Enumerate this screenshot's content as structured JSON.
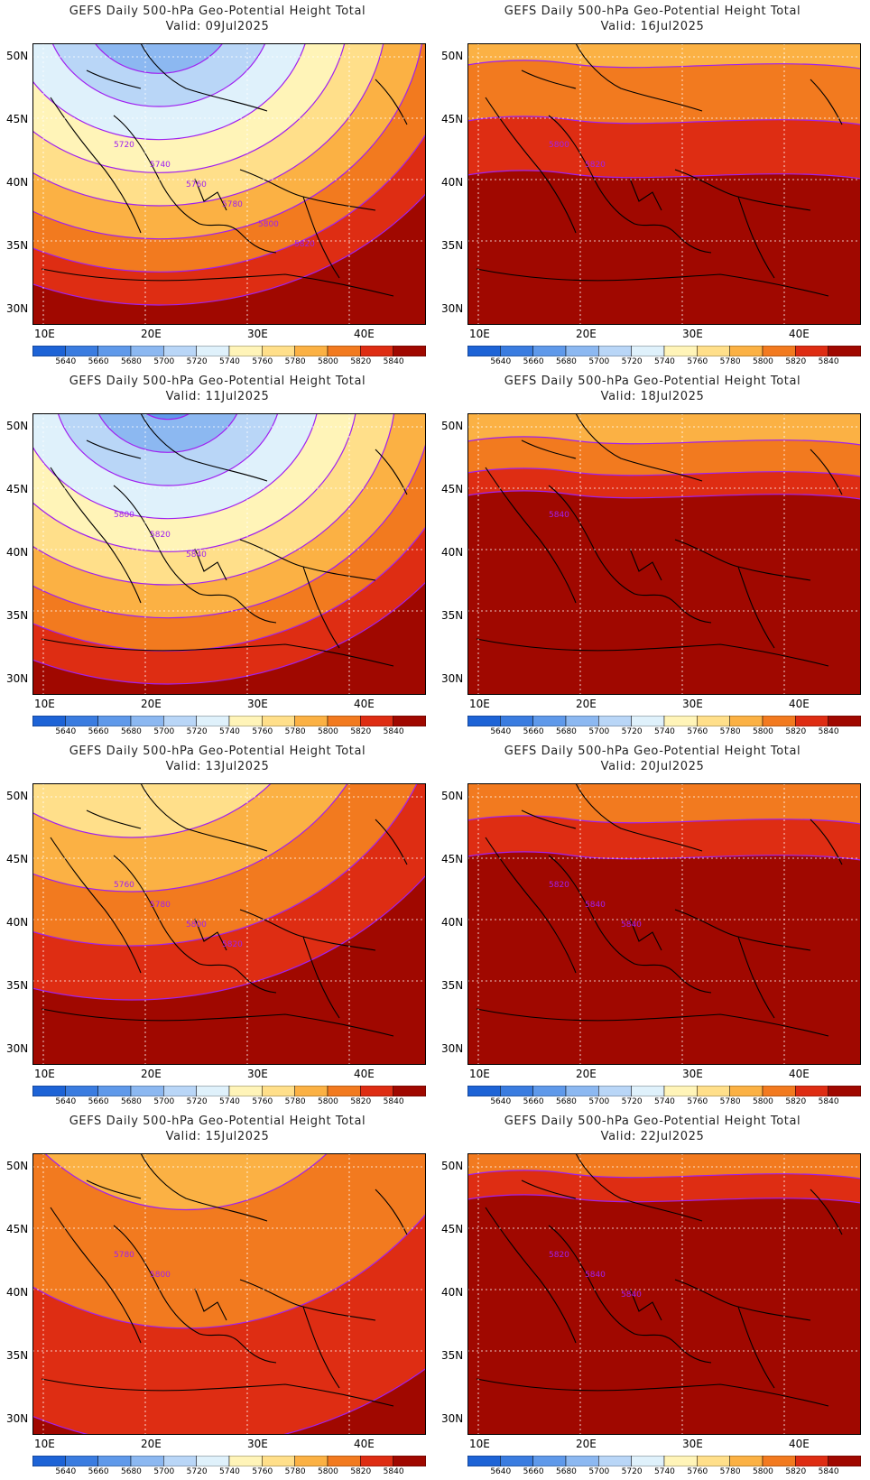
{
  "title_line": "GEFS Daily 500-hPa Geo-Potential Height Total",
  "valid_prefix": "Valid:",
  "panels": [
    {
      "date": "09Jul2025",
      "contour_labels": [
        "5720",
        "5740",
        "5760",
        "5780",
        "5800",
        "5820"
      ]
    },
    {
      "date": "16Jul2025",
      "contour_labels": [
        "5800",
        "5820"
      ]
    },
    {
      "date": "11Jul2025",
      "contour_labels": [
        "5800",
        "5820",
        "5840"
      ]
    },
    {
      "date": "18Jul2025",
      "contour_labels": [
        "5840"
      ]
    },
    {
      "date": "13Jul2025",
      "contour_labels": [
        "5760",
        "5780",
        "5800",
        "5820"
      ]
    },
    {
      "date": "20Jul2025",
      "contour_labels": [
        "5820",
        "5840",
        "5840"
      ]
    },
    {
      "date": "15Jul2025",
      "contour_labels": [
        "5780",
        "5800"
      ]
    },
    {
      "date": "22Jul2025",
      "contour_labels": [
        "5820",
        "5840",
        "5840"
      ]
    }
  ],
  "lat_labels": [
    "50N",
    "45N",
    "40N",
    "35N",
    "30N"
  ],
  "lon_labels": [
    "10E",
    "20E",
    "30E",
    "40E"
  ],
  "colorbar": {
    "ticks": [
      "5640",
      "5660",
      "5680",
      "5700",
      "5720",
      "5740",
      "5760",
      "5780",
      "5800",
      "5820",
      "5840"
    ],
    "colors": [
      "#1d63d6",
      "#3a7ce0",
      "#5f99ea",
      "#8cb8f1",
      "#b9d6f7",
      "#dff1fb",
      "#fff4b8",
      "#ffdf8a",
      "#fbb144",
      "#f27a1f",
      "#de2d13",
      "#a00800"
    ]
  },
  "colors": {
    "contour": "#a020f0",
    "coast": "#000000",
    "grid": "#ffffff"
  }
}
